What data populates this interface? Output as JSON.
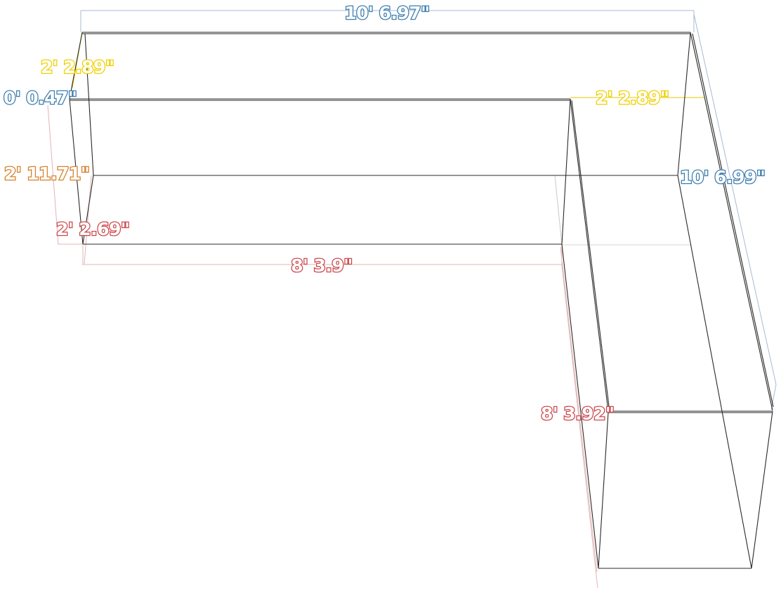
{
  "colors": {
    "blue": "#3f7fae",
    "yellow": "#f0d000",
    "orange": "#d4822d",
    "red": "#cc4a4f",
    "blue_line": "#a9b8d6",
    "red_line": "#e2b4b6",
    "yellow_line": "#e6c800",
    "edge": "#2a2a2a"
  },
  "dimensions": {
    "overall_width": "10' 6.97\"",
    "left_depth": "2' 2.89\"",
    "left_offset": "0' 0.47\"",
    "height": "2' 11.71\"",
    "seat_depth": "2' 2.69\"",
    "front_length": "8' 3.9\"",
    "right_depth": "2' 2.89\"",
    "right_length": "10' 6.99\"",
    "chaise_length": "8' 3.92\""
  }
}
